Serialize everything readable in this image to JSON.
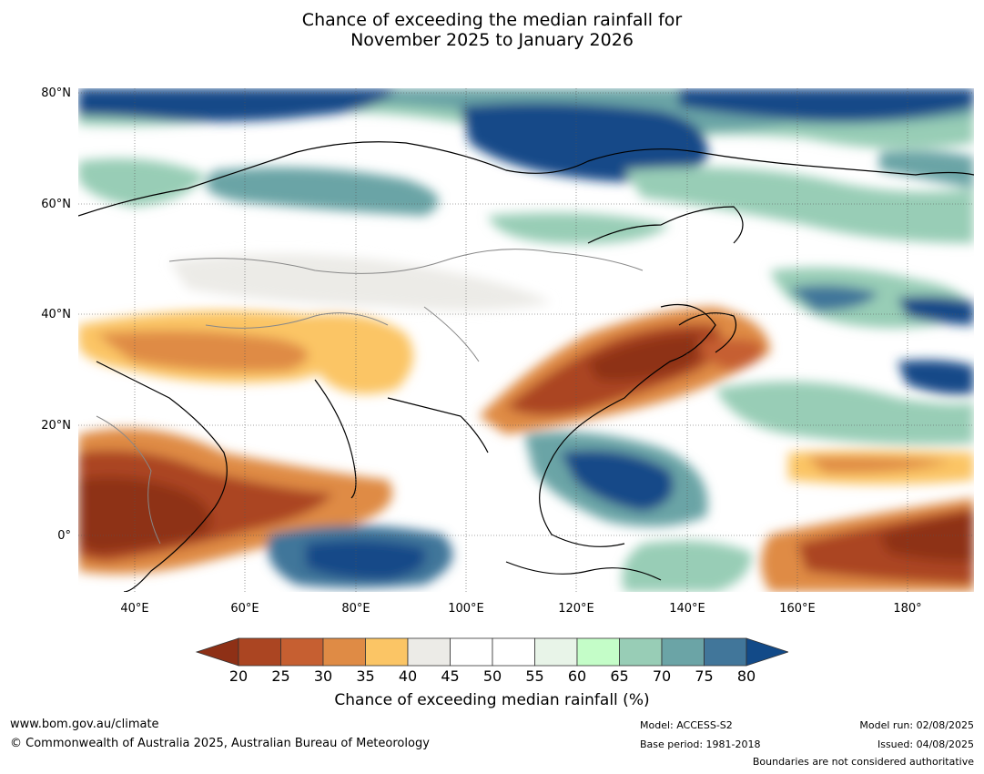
{
  "title": {
    "line1": "Chance of exceeding the median rainfall for",
    "line2": "November 2025 to January 2026"
  },
  "map": {
    "lat_labels": [
      "80°N",
      "60°N",
      "40°N",
      "20°N",
      "0°"
    ],
    "lon_labels": [
      "40°E",
      "60°E",
      "80°E",
      "100°E",
      "120°E",
      "140°E",
      "160°E",
      "180°"
    ],
    "region": "Asia and western Pacific"
  },
  "colorbar": {
    "ticks": [
      "20",
      "25",
      "30",
      "35",
      "40",
      "45",
      "50",
      "55",
      "60",
      "65",
      "70",
      "75",
      "80"
    ],
    "colors": [
      "#8e3016",
      "#ab4522",
      "#c65f31",
      "#df8b45",
      "#fbc565",
      "#ecebe7",
      "#ffffff",
      "#ffffff",
      "#e8f4e8",
      "#c4fdc8",
      "#98cdb6",
      "#6ba4a6",
      "#41769a",
      "#124a88"
    ],
    "label": "Chance of exceeding median rainfall (%)"
  },
  "footer": {
    "website": "www.bom.gov.au/climate",
    "copyright": "© Commonwealth of Australia 2025, Australian Bureau of Meteorology",
    "model": "Model: ACCESS-S2",
    "base_period": "Base period: 1981-2018",
    "model_run": "Model run: 02/08/2025",
    "issued": "Issued: 04/08/2025",
    "disclaimer": "Boundaries are not considered authoritative"
  }
}
